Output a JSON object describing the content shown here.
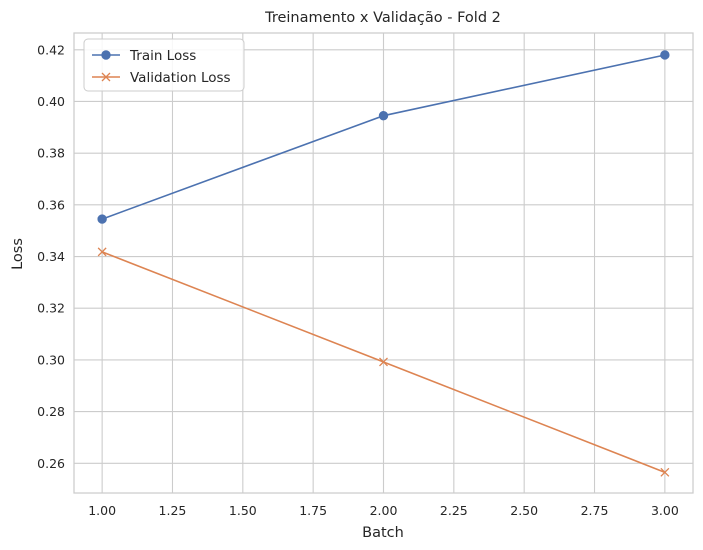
{
  "chart_data": {
    "type": "line",
    "title": "Treinamento x Validação - Fold 2",
    "xlabel": "Batch",
    "ylabel": "Loss",
    "x": [
      1,
      2,
      3
    ],
    "xlim": [
      0.9,
      3.1
    ],
    "ylim": [
      0.2485,
      0.4265
    ],
    "xticks": [
      1.0,
      1.25,
      1.5,
      1.75,
      2.0,
      2.25,
      2.5,
      2.75,
      3.0
    ],
    "xtick_labels": [
      "1.00",
      "1.25",
      "1.50",
      "1.75",
      "2.00",
      "2.25",
      "2.50",
      "2.75",
      "3.00"
    ],
    "yticks": [
      0.26,
      0.28,
      0.3,
      0.32,
      0.34,
      0.36,
      0.38,
      0.4,
      0.42
    ],
    "ytick_labels": [
      "0.26",
      "0.28",
      "0.30",
      "0.32",
      "0.34",
      "0.36",
      "0.38",
      "0.40",
      "0.42"
    ],
    "grid": true,
    "legend_position": "top-left",
    "series": [
      {
        "name": "Train Loss",
        "values": [
          0.3545,
          0.3945,
          0.418
        ],
        "color": "#4c72b0",
        "marker": "circle"
      },
      {
        "name": "Validation Loss",
        "values": [
          0.3418,
          0.2992,
          0.2565
        ],
        "color": "#dd8452",
        "marker": "x"
      }
    ]
  }
}
